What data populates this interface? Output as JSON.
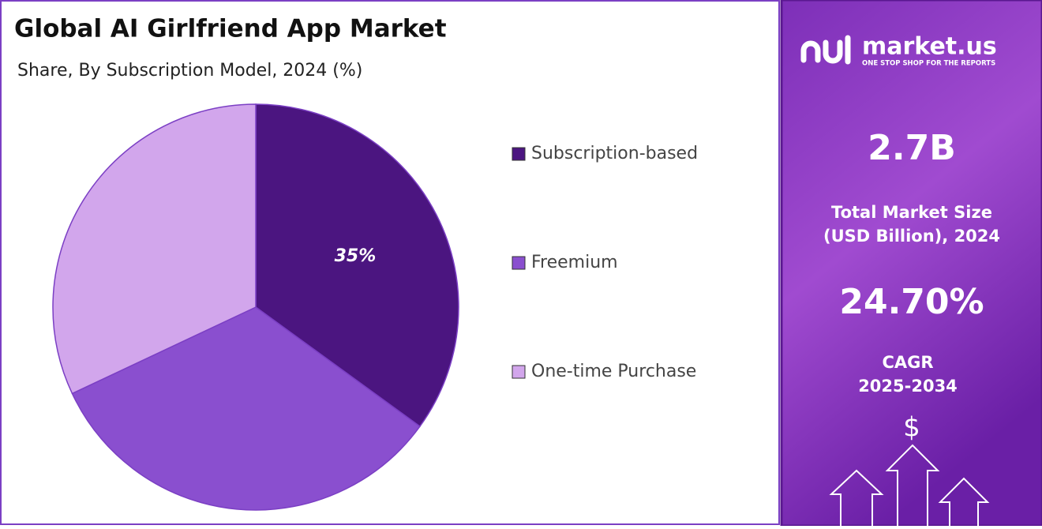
{
  "chart_data": {
    "type": "pie",
    "title": "Global AI Girlfriend App Market",
    "subtitle": "Share, By Subscription Model, 2024 (%)",
    "categories": [
      "Subscription-based",
      "Freemium",
      "One-time Purchase"
    ],
    "values": [
      35,
      33,
      32
    ],
    "value_labels": [
      "35%",
      null,
      null
    ],
    "colors": [
      "#4b1580",
      "#8a4fcf",
      "#d2a6ec"
    ]
  },
  "panel": {
    "brand": "market.us",
    "tagline": "ONE STOP SHOP FOR THE REPORTS",
    "market_size": "2.7B",
    "market_size_label": [
      "Total Market Size",
      "(USD Billion), 2024"
    ],
    "cagr": "24.70%",
    "cagr_label": [
      "CAGR",
      "2025-2034"
    ],
    "icon": "$"
  }
}
